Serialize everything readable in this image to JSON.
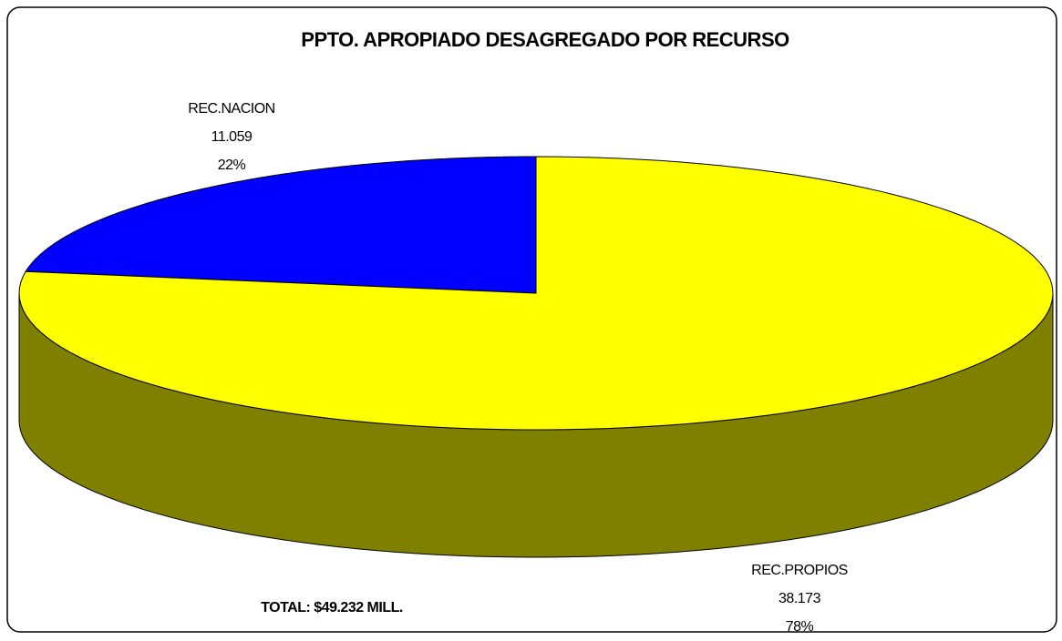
{
  "chart_data": {
    "type": "pie3d",
    "title": "PPTO. APROPIADO DESAGREGADO POR RECURSO",
    "categories": [
      "REC.NACION",
      "REC.PROPIOS"
    ],
    "values": [
      11.059,
      38.173
    ],
    "percentages": [
      22,
      78
    ],
    "percentage_labels": [
      "22%",
      "78%"
    ],
    "colors": [
      "#0000ff",
      "#ffff00"
    ],
    "side_colors": [
      "#000080",
      "#808000"
    ],
    "annotation": "TOTAL: $49.232 MILL."
  }
}
